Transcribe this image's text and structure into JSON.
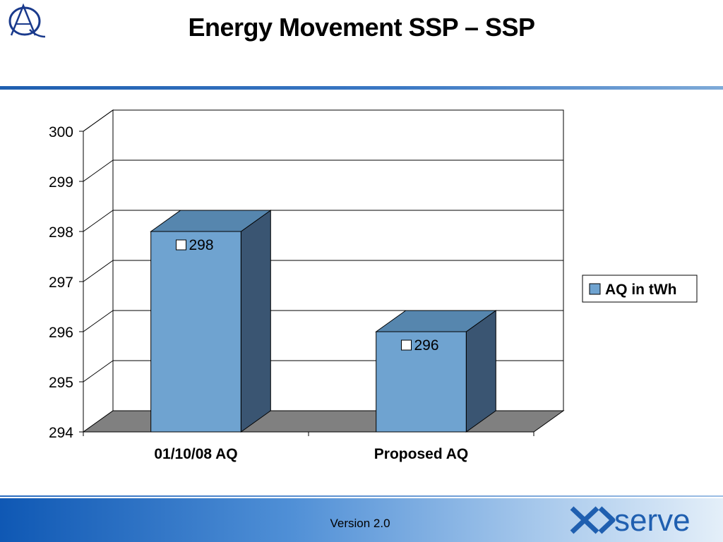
{
  "slide": {
    "title": "Energy Movement SSP – SSP",
    "footer_version": "Version 2.0",
    "brand": "serve",
    "colors": {
      "bar_front": "#6fa3d0",
      "bar_top": "#5686ae",
      "bar_side": "#3a5572",
      "floor": "#808080",
      "accent": "#1f5fb0"
    },
    "icons": {
      "logo": "aq-monogram-logo",
      "brand": "xoserve-wordmark"
    }
  },
  "chart_data": {
    "type": "bar",
    "title": "",
    "xlabel": "",
    "ylabel": "",
    "categories": [
      "01/10/08 AQ",
      "Proposed AQ"
    ],
    "series": [
      {
        "name": "AQ in tWh",
        "values": [
          298,
          296
        ]
      }
    ],
    "data_labels": [
      "298",
      "296"
    ],
    "ylim": [
      294,
      300
    ],
    "yticks": [
      "294",
      "295",
      "296",
      "297",
      "298",
      "299",
      "300"
    ],
    "grid": true,
    "legend_position": "right",
    "three_d": true
  }
}
